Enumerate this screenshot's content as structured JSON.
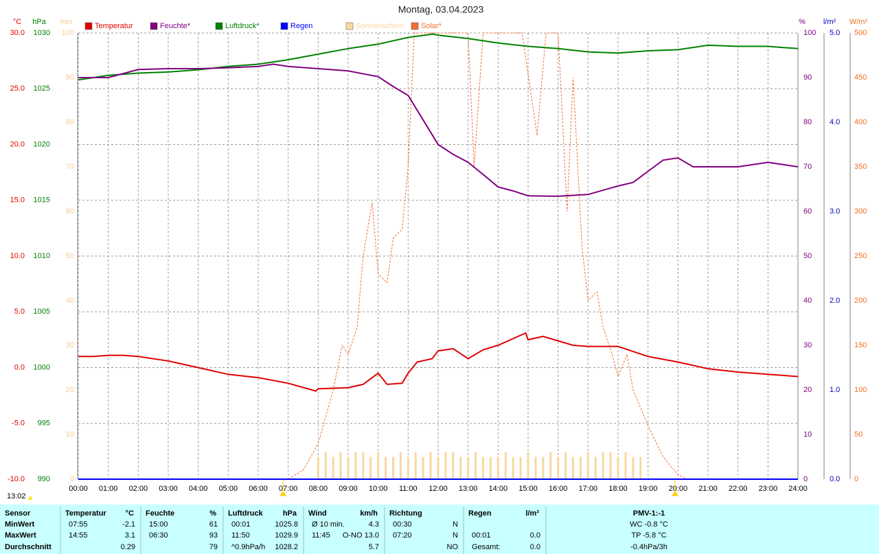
{
  "chart_data": {
    "type": "line",
    "title": "Montag, 03.04.2023",
    "time_label": "13:02",
    "xlim": [
      0,
      24
    ],
    "xticks": [
      {
        "value": 0,
        "label": "00:00"
      },
      {
        "value": 1,
        "label": "01:00"
      },
      {
        "value": 2,
        "label": "02:00"
      },
      {
        "value": 3,
        "label": "03:00"
      },
      {
        "value": 4,
        "label": "04:00"
      },
      {
        "value": 5,
        "label": "05:00"
      },
      {
        "value": 6,
        "label": "06:00"
      },
      {
        "value": 7,
        "label": "07:00"
      },
      {
        "value": 8,
        "label": "08:00"
      },
      {
        "value": 9,
        "label": "09:00"
      },
      {
        "value": 10,
        "label": "10:00"
      },
      {
        "value": 11,
        "label": "11:00"
      },
      {
        "value": 12,
        "label": "12:00"
      },
      {
        "value": 13,
        "label": "13:00"
      },
      {
        "value": 14,
        "label": "14:00"
      },
      {
        "value": 15,
        "label": "15:00"
      },
      {
        "value": 16,
        "label": "16:00"
      },
      {
        "value": 17,
        "label": "17:00"
      },
      {
        "value": 18,
        "label": "18:00"
      },
      {
        "value": 19,
        "label": "19:00"
      },
      {
        "value": 20,
        "label": "20:00"
      },
      {
        "value": 21,
        "label": "21:00"
      },
      {
        "value": 22,
        "label": "22:00"
      },
      {
        "value": 23,
        "label": "23:00"
      },
      {
        "value": 24,
        "label": "24:00"
      }
    ],
    "grid": true,
    "sun_markers": [
      6.83,
      19.9
    ],
    "axes": [
      {
        "label": "°C",
        "color": "#e00000",
        "side": "left",
        "lim": [
          -10,
          30
        ],
        "ticks": [
          {
            "value": -10,
            "label": "-10.0"
          },
          {
            "value": -5,
            "label": "-5.0"
          },
          {
            "value": 0,
            "label": "0.0"
          },
          {
            "value": 5,
            "label": "5.0"
          },
          {
            "value": 10,
            "label": "10.0"
          },
          {
            "value": 15,
            "label": "15.0"
          },
          {
            "value": 20,
            "label": "20.0"
          },
          {
            "value": 25,
            "label": "25.0"
          },
          {
            "value": 30,
            "label": "30.0"
          }
        ]
      },
      {
        "label": "hPa",
        "color": "#008000",
        "side": "left",
        "lim": [
          990,
          1030
        ],
        "ticks": [
          990,
          995,
          1000,
          1005,
          1010,
          1015,
          1020,
          1025,
          1030
        ]
      },
      {
        "label": "min",
        "color": "#f5cc90",
        "side": "left",
        "lim": [
          0,
          100
        ],
        "ticks": [
          0,
          10,
          20,
          30,
          40,
          50,
          60,
          70,
          80,
          90,
          100
        ]
      },
      {
        "label": "%",
        "color": "#800080",
        "side": "right",
        "lim": [
          0,
          100
        ],
        "ticks": [
          0,
          10,
          20,
          30,
          40,
          50,
          60,
          70,
          80,
          90,
          100
        ]
      },
      {
        "label": "l/m²",
        "color": "#0000c0",
        "side": "right",
        "lim": [
          0,
          5
        ],
        "ticks": [
          {
            "value": 0,
            "label": "0.0"
          },
          {
            "value": 1,
            "label": "1.0"
          },
          {
            "value": 2,
            "label": "2.0"
          },
          {
            "value": 3,
            "label": "3.0"
          },
          {
            "value": 4,
            "label": "4.0"
          },
          {
            "value": 5,
            "label": "5.0"
          }
        ]
      },
      {
        "label": "W/m²",
        "color": "#f07020",
        "side": "right",
        "lim": [
          0,
          500
        ],
        "ticks": [
          0,
          50,
          100,
          150,
          200,
          250,
          300,
          350,
          400,
          450,
          500
        ]
      }
    ],
    "series": [
      {
        "name": "Temperatur",
        "color": "#e00000",
        "axis": 0,
        "x": [
          0,
          0.5,
          1,
          1.5,
          2,
          3,
          4,
          5,
          6,
          7,
          7.92,
          8,
          9,
          9.5,
          10,
          10.3,
          10.8,
          11,
          11.3,
          11.8,
          12,
          12.5,
          13,
          13.5,
          14,
          14.92,
          15,
          15.5,
          16,
          16.5,
          17,
          18,
          19,
          20,
          21,
          22,
          23,
          24
        ],
        "values": [
          1.0,
          1.0,
          1.1,
          1.1,
          1.0,
          0.6,
          0.0,
          -0.6,
          -0.9,
          -1.4,
          -2.1,
          -1.9,
          -1.8,
          -1.5,
          -0.5,
          -1.5,
          -1.4,
          -0.5,
          0.5,
          0.8,
          1.5,
          1.7,
          0.8,
          1.6,
          2.0,
          3.1,
          2.5,
          2.8,
          2.4,
          2.0,
          1.9,
          1.9,
          1.0,
          0.5,
          -0.1,
          -0.4,
          -0.6,
          -0.8
        ]
      },
      {
        "name": "Feuchte*",
        "color": "#800080",
        "axis": 3,
        "x": [
          0,
          1,
          2,
          3,
          4,
          5,
          6,
          6.5,
          7,
          8,
          9,
          10,
          10.5,
          11,
          11.5,
          12,
          12.5,
          13,
          13.5,
          14,
          14.5,
          15,
          16,
          17,
          18,
          18.5,
          19,
          19.5,
          20,
          20.5,
          21,
          22,
          23,
          24
        ],
        "values": [
          90,
          90,
          91.8,
          92,
          92,
          92.2,
          92.5,
          93,
          92.5,
          92,
          91.5,
          90.2,
          88,
          86,
          80.5,
          75,
          72.8,
          71,
          68.3,
          65.5,
          64.6,
          63.5,
          63.4,
          63.8,
          65.7,
          66.5,
          69,
          71.5,
          72,
          70,
          70,
          70,
          71,
          70
        ]
      },
      {
        "name": "Luftdruck*",
        "color": "#008000",
        "axis": 1,
        "x": [
          0,
          0.02,
          1,
          2,
          3,
          4,
          5,
          6,
          7,
          8,
          9,
          10,
          11,
          11.83,
          12,
          13,
          14,
          15,
          16,
          17,
          18,
          19,
          20,
          21,
          22,
          23,
          24
        ],
        "values": [
          1025.8,
          1025.8,
          1026.2,
          1026.4,
          1026.5,
          1026.7,
          1027.0,
          1027.2,
          1027.6,
          1028.1,
          1028.6,
          1029.0,
          1029.6,
          1029.9,
          1029.8,
          1029.5,
          1029.1,
          1028.8,
          1028.6,
          1028.3,
          1028.2,
          1028.4,
          1028.5,
          1028.9,
          1028.8,
          1028.8,
          1028.6
        ]
      },
      {
        "name": "Regen",
        "color": "#0000ff",
        "axis": 4,
        "x": [
          0,
          24
        ],
        "values": [
          0,
          0
        ]
      },
      {
        "name": "Sonnenschein",
        "color": "#f8d8a0",
        "axis": 2,
        "kind": "bar",
        "x": [
          8,
          8.25,
          8.5,
          8.75,
          9,
          9.25,
          9.5,
          9.75,
          10,
          10.25,
          10.5,
          10.75,
          11,
          11.25,
          11.5,
          11.75,
          12,
          12.25,
          12.5,
          12.75,
          13,
          13.25,
          13.5,
          13.75,
          14,
          14.25,
          14.5,
          14.75,
          15,
          15.25,
          15.5,
          15.75,
          16,
          16.25,
          16.5,
          16.75,
          17,
          17.25,
          17.5,
          17.75,
          18,
          18.25,
          18.5,
          18.75
        ],
        "values": [
          5,
          6,
          5,
          6,
          5,
          6,
          6,
          5,
          6,
          5,
          5,
          6,
          5,
          6,
          5,
          6,
          5,
          6,
          6,
          5,
          5,
          6,
          5,
          5,
          5,
          6,
          5,
          5,
          6,
          5,
          5,
          6,
          5,
          6,
          5,
          5,
          6,
          5,
          6,
          6,
          5,
          6,
          5,
          5
        ]
      },
      {
        "name": "Solar*",
        "color": "#f07030",
        "axis": 5,
        "dashed": true,
        "x": [
          7,
          7.5,
          8,
          8.5,
          8.8,
          9,
          9.3,
          9.5,
          9.8,
          10,
          10.3,
          10.5,
          10.8,
          11,
          11.2,
          11.5,
          12,
          13,
          13.2,
          13.5,
          14,
          14.8,
          15.3,
          15.6,
          16,
          16.3,
          16.5,
          16.8,
          17,
          17.3,
          17.5,
          17.8,
          18,
          18.3,
          18.5,
          19,
          19.5,
          20,
          20.3
        ],
        "values": [
          0,
          10,
          40,
          100,
          150,
          140,
          170,
          250,
          310,
          230,
          220,
          270,
          280,
          350,
          500,
          500,
          500,
          500,
          350,
          500,
          500,
          500,
          385,
          500,
          500,
          300,
          450,
          260,
          200,
          210,
          170,
          140,
          115,
          140,
          100,
          60,
          25,
          5,
          0
        ]
      }
    ]
  },
  "table": {
    "sections": [
      {
        "title": "Sensor",
        "rows": [
          {
            "t": "MinWert"
          },
          {
            "t": "MaxWert"
          },
          {
            "t": "Durchschnitt"
          }
        ]
      },
      {
        "title": "Temperatur",
        "unit": "°C",
        "rows": [
          {
            "t": "07:55",
            "v": "-2.1"
          },
          {
            "t": "14:55",
            "v": "3.1"
          },
          {
            "v": "0.29"
          }
        ]
      },
      {
        "title": "Feuchte",
        "unit": "%",
        "rows": [
          {
            "t": "15:00",
            "v": "61"
          },
          {
            "t": "06:30",
            "v": "93"
          },
          {
            "v": "79"
          }
        ]
      },
      {
        "title": "Luftdruck",
        "unit": "hPa",
        "rows": [
          {
            "t": "00:01",
            "v": "1025.8"
          },
          {
            "t": "11:50",
            "v": "1029.9"
          },
          {
            "t": "^0.9hPa/h",
            "v": "1028.2"
          }
        ]
      },
      {
        "title": "Wind",
        "unit": "km/h",
        "rows": [
          {
            "t": "Ø 10 min.",
            "v": "4.3"
          },
          {
            "t": "11:45",
            "v": "O-NO 13.0"
          },
          {
            "v": "5.7"
          }
        ]
      },
      {
        "title": "Richtung",
        "rows": [
          {
            "t": "00:30",
            "v": "N"
          },
          {
            "t": "07:20",
            "v": "N"
          },
          {
            "v": "NO"
          }
        ]
      },
      {
        "title": "Regen",
        "unit": "l/m²",
        "rows": [
          {},
          {
            "t": "00:01",
            "v": "0.0"
          },
          {
            "t": "Gesamt:",
            "v": "0.0"
          }
        ]
      },
      {
        "title": "PMV-1:-1",
        "center": true,
        "rows": [
          {
            "v": "WC -0.8 °C"
          },
          {
            "v": "TP -5.8 °C"
          },
          {
            "v": "-0.4hPa/3h"
          }
        ]
      }
    ]
  }
}
